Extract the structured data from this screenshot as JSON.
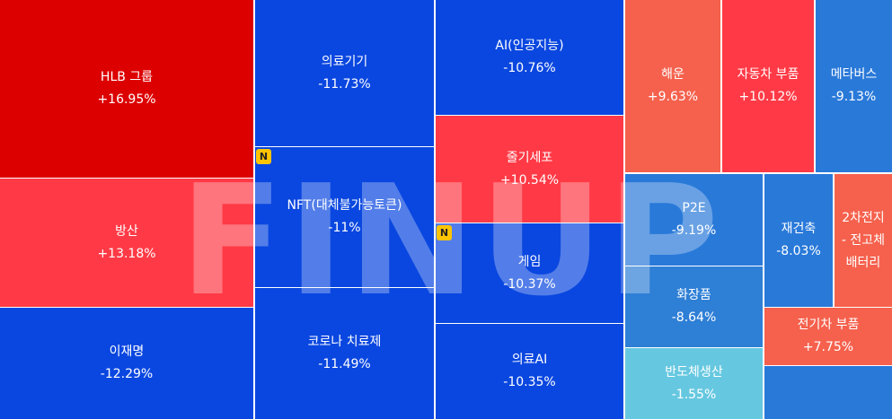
{
  "chart_data": {
    "type": "treemap",
    "watermark": "FINUP",
    "categories": [
      "HLB 그룹",
      "방산",
      "이재명",
      "의료기기",
      "NFT(대체불가능토큰)",
      "코로나 치료제",
      "AI(인공지능)",
      "줄기세포",
      "게임",
      "의료AI",
      "해운",
      "자동차 부품",
      "메타버스",
      "P2E",
      "화장품",
      "반도체생산",
      "재건축",
      "2차전지 - 전고체배터리",
      "전기차 부품",
      null
    ],
    "values": [
      16.95,
      13.18,
      -12.29,
      -11.73,
      -11,
      -11.49,
      -10.76,
      10.54,
      -10.37,
      -10.35,
      9.63,
      10.12,
      -9.13,
      -9.19,
      -8.64,
      -1.55,
      -8.03,
      null,
      7.75,
      null
    ],
    "value_labels": [
      "+16.95%",
      "+13.18%",
      "-12.29%",
      "-11.73%",
      "-11%",
      "-11.49%",
      "-10.76%",
      "+10.54%",
      "-10.37%",
      "-10.35%",
      "+9.63%",
      "+10.12%",
      "-9.13%",
      "-9.19%",
      "-8.64%",
      "-1.55%",
      "-8.03%",
      null,
      "+7.75%",
      null
    ],
    "badges": [
      null,
      null,
      null,
      null,
      "N",
      null,
      null,
      null,
      "N",
      null,
      null,
      null,
      null,
      null,
      null,
      null,
      null,
      null,
      null,
      null
    ],
    "colors": [
      "#dd0000",
      "#ff3a46",
      "#0a47e0",
      "#0a47e0",
      "#0a47e0",
      "#0a47e0",
      "#0a47e0",
      "#ff3a46",
      "#0a47e0",
      "#0a47e0",
      "#f5614d",
      "#ff3a46",
      "#2979d9",
      "#2979d9",
      "#2e7fd6",
      "#66c8e0",
      "#2979d9",
      "#f5614d",
      "#f5614d",
      "#2979d9"
    ]
  }
}
